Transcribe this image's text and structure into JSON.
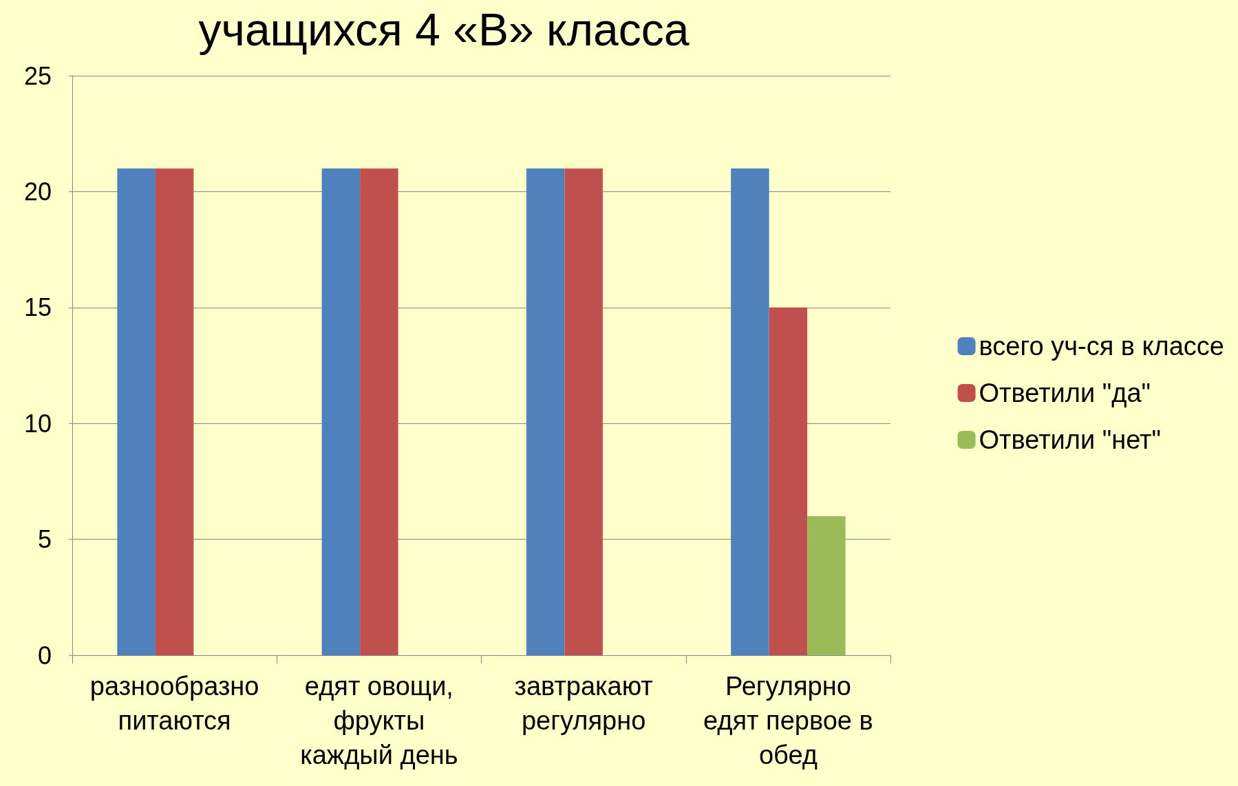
{
  "chart_data": {
    "type": "bar",
    "title": "учащихся 4 «В» класса",
    "categories": [
      "разнообразно\nпитаются",
      "едят овощи,\nфрукты\nкаждый день",
      "завтракают\nрегулярно",
      "Регулярно\nедят первое в\nобед"
    ],
    "series": [
      {
        "name": "всего уч-ся в классе",
        "color": "#4f81bd",
        "values": [
          21,
          21,
          21,
          21
        ]
      },
      {
        "name": "Ответили \"да\"",
        "color": "#c0504d",
        "values": [
          21,
          21,
          21,
          15
        ]
      },
      {
        "name": "Ответили \"нет\"",
        "color": "#9bbb59",
        "values": [
          null,
          null,
          null,
          6
        ]
      }
    ],
    "ylim": [
      0,
      25
    ],
    "yticks": [
      0,
      5,
      10,
      15,
      20,
      25
    ],
    "grid": "y",
    "legend": "right"
  }
}
